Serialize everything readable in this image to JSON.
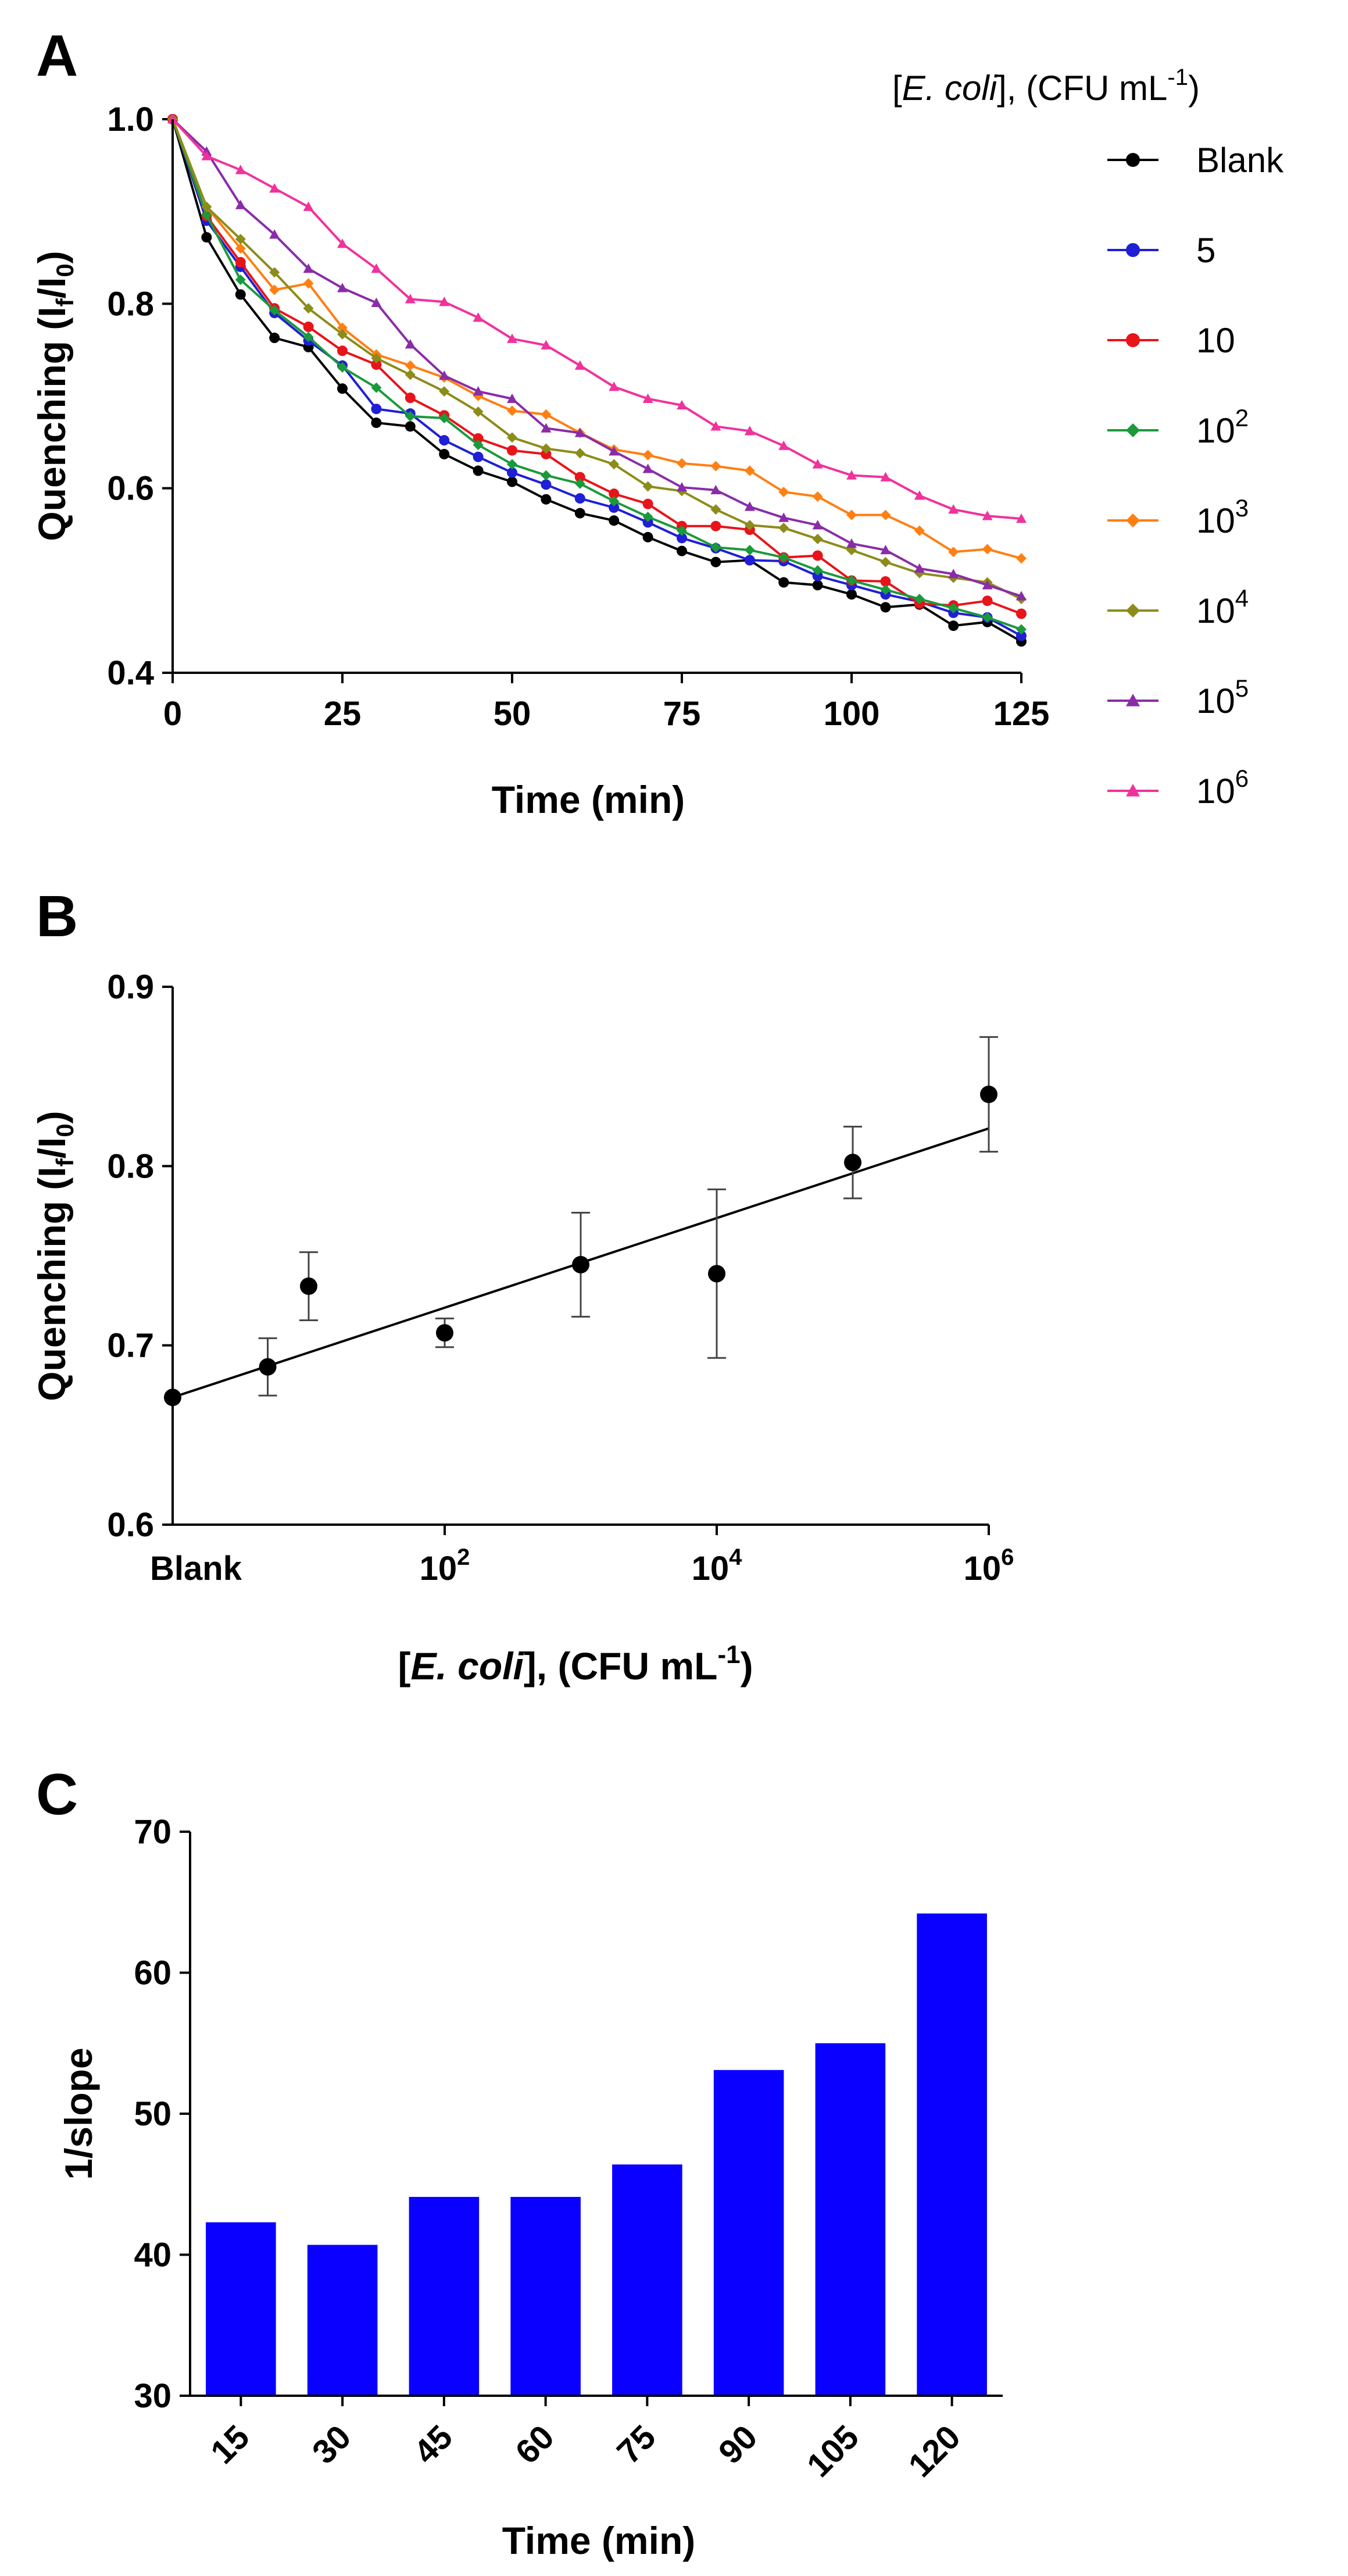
{
  "chart_data": [
    {
      "panel": "A",
      "type": "line",
      "xlabel": "Time (min)",
      "ylabel_main": "Quenching (I",
      "ylabel_sub1": "f",
      "ylabel_mid": "/I",
      "ylabel_sub2": "0",
      "ylabel_end": ")",
      "xlim": [
        0,
        125
      ],
      "ylim": [
        0.4,
        1.0
      ],
      "xticks": [
        "0",
        "25",
        "50",
        "75",
        "100",
        "125"
      ],
      "yticks": [
        "0.4",
        "0.6",
        "0.8",
        "1.0"
      ],
      "legend_title_pre": "[",
      "legend_title_italic": "E. coli",
      "legend_title_post": "], (CFU mL",
      "legend_title_sup": "-1",
      "legend_title_end": ")",
      "x": [
        0,
        5,
        10,
        15,
        20,
        25,
        30,
        35,
        40,
        45,
        50,
        55,
        60,
        65,
        70,
        75,
        80,
        85,
        90,
        95,
        100,
        105,
        110,
        115,
        120,
        125
      ],
      "series": [
        {
          "name": "Blank",
          "base": "Blank",
          "sup": "",
          "color": "#000000",
          "marker": "circle",
          "values": [
            1.0,
            0.872,
            0.81,
            0.763,
            0.753,
            0.708,
            0.671,
            0.667,
            0.637,
            0.619,
            0.607,
            0.588,
            0.573,
            0.565,
            0.547,
            0.532,
            0.52,
            0.522,
            0.498,
            0.495,
            0.485,
            0.471,
            0.474,
            0.451,
            0.455,
            0.434
          ]
        },
        {
          "name": "5",
          "base": "5",
          "sup": "",
          "color": "#1f1fd6",
          "marker": "circle",
          "values": [
            1.0,
            0.89,
            0.84,
            0.79,
            0.76,
            0.733,
            0.686,
            0.681,
            0.652,
            0.634,
            0.617,
            0.604,
            0.589,
            0.579,
            0.563,
            0.546,
            0.535,
            0.522,
            0.521,
            0.505,
            0.495,
            0.485,
            0.477,
            0.465,
            0.46,
            0.44
          ]
        },
        {
          "name": "10",
          "base": "10",
          "sup": "",
          "color": "#e8141a",
          "marker": "circle",
          "values": [
            1.0,
            0.895,
            0.845,
            0.795,
            0.775,
            0.749,
            0.734,
            0.698,
            0.679,
            0.654,
            0.641,
            0.637,
            0.612,
            0.594,
            0.583,
            0.559,
            0.559,
            0.555,
            0.525,
            0.527,
            0.5,
            0.499,
            0.475,
            0.473,
            0.478,
            0.464
          ]
        },
        {
          "name": "10^2",
          "base": "10",
          "sup": "2",
          "color": "#1a9a3a",
          "marker": "diamond",
          "values": [
            1.0,
            0.896,
            0.826,
            0.793,
            0.764,
            0.731,
            0.709,
            0.678,
            0.676,
            0.647,
            0.626,
            0.614,
            0.605,
            0.586,
            0.569,
            0.554,
            0.536,
            0.533,
            0.525,
            0.511,
            0.5,
            0.49,
            0.48,
            0.47,
            0.46,
            0.447
          ]
        },
        {
          "name": "10^3",
          "base": "10",
          "sup": "3",
          "color": "#ff7f12",
          "marker": "diamond",
          "values": [
            1.0,
            0.905,
            0.86,
            0.815,
            0.822,
            0.774,
            0.745,
            0.733,
            0.72,
            0.7,
            0.684,
            0.68,
            0.66,
            0.642,
            0.636,
            0.627,
            0.624,
            0.619,
            0.596,
            0.591,
            0.571,
            0.571,
            0.554,
            0.531,
            0.534,
            0.524
          ]
        },
        {
          "name": "10^4",
          "base": "10",
          "sup": "4",
          "color": "#8c8c1a",
          "marker": "diamond",
          "values": [
            1.0,
            0.905,
            0.87,
            0.834,
            0.795,
            0.767,
            0.741,
            0.723,
            0.705,
            0.683,
            0.655,
            0.643,
            0.638,
            0.626,
            0.602,
            0.597,
            0.577,
            0.56,
            0.557,
            0.545,
            0.533,
            0.52,
            0.508,
            0.503,
            0.498,
            0.48
          ]
        },
        {
          "name": "10^5",
          "base": "10",
          "sup": "5",
          "color": "#8a2ca8",
          "marker": "triangle",
          "values": [
            1.0,
            0.965,
            0.907,
            0.875,
            0.838,
            0.817,
            0.801,
            0.756,
            0.722,
            0.705,
            0.697,
            0.665,
            0.66,
            0.64,
            0.621,
            0.601,
            0.598,
            0.58,
            0.568,
            0.56,
            0.54,
            0.533,
            0.513,
            0.507,
            0.495,
            0.483
          ]
        },
        {
          "name": "10^6",
          "base": "10",
          "sup": "6",
          "color": "#f0329c",
          "marker": "triangle",
          "values": [
            1.0,
            0.96,
            0.945,
            0.925,
            0.905,
            0.865,
            0.838,
            0.805,
            0.802,
            0.785,
            0.762,
            0.755,
            0.733,
            0.71,
            0.697,
            0.69,
            0.667,
            0.662,
            0.646,
            0.626,
            0.614,
            0.612,
            0.592,
            0.577,
            0.57,
            0.567
          ]
        }
      ]
    },
    {
      "panel": "B",
      "type": "scatter",
      "xlabel_pre": "[",
      "xlabel_italic": "E. coli",
      "xlabel_post": "], (CFU mL",
      "xlabel_sup": "-1",
      "xlabel_end": ")",
      "ylabel_main": "Quenching (I",
      "ylabel_sub1": "f",
      "ylabel_mid": "/I",
      "ylabel_sub2": "0",
      "ylabel_end": ")",
      "xlim_log": [
        0,
        6
      ],
      "ylim": [
        0.6,
        0.9
      ],
      "yticks": [
        "0.6",
        "0.7",
        "0.8",
        "0.9"
      ],
      "xticks": [
        {
          "pos": 0,
          "base": "Blank",
          "sup": ""
        },
        {
          "pos": 2,
          "base": "10",
          "sup": "2"
        },
        {
          "pos": 4,
          "base": "10",
          "sup": "4"
        },
        {
          "pos": 6,
          "base": "10",
          "sup": "6"
        }
      ],
      "points": [
        {
          "x_log": 0.0,
          "y": 0.671,
          "err": 0.0
        },
        {
          "x_log": 0.699,
          "y": 0.688,
          "err": 0.016
        },
        {
          "x_log": 1.0,
          "y": 0.733,
          "err": 0.019
        },
        {
          "x_log": 2.0,
          "y": 0.707,
          "err": 0.008
        },
        {
          "x_log": 3.0,
          "y": 0.745,
          "err": 0.029
        },
        {
          "x_log": 4.0,
          "y": 0.74,
          "err": 0.047
        },
        {
          "x_log": 5.0,
          "y": 0.802,
          "err": 0.02
        },
        {
          "x_log": 6.0,
          "y": 0.84,
          "err": 0.032
        }
      ],
      "fit": {
        "x_log": [
          0,
          6
        ],
        "y": [
          0.671,
          0.821
        ]
      }
    },
    {
      "panel": "C",
      "type": "bar",
      "title": "",
      "xlabel": "Time (min)",
      "ylabel": "1/slope",
      "ylim": [
        30,
        70
      ],
      "yticks": [
        "30",
        "40",
        "50",
        "60",
        "70"
      ],
      "categories": [
        "15",
        "30",
        "45",
        "60",
        "75",
        "90",
        "105",
        "120"
      ],
      "values": [
        42.3,
        40.7,
        44.1,
        44.1,
        46.4,
        53.1,
        55.0,
        64.2
      ],
      "color": "#0a00ff"
    }
  ]
}
